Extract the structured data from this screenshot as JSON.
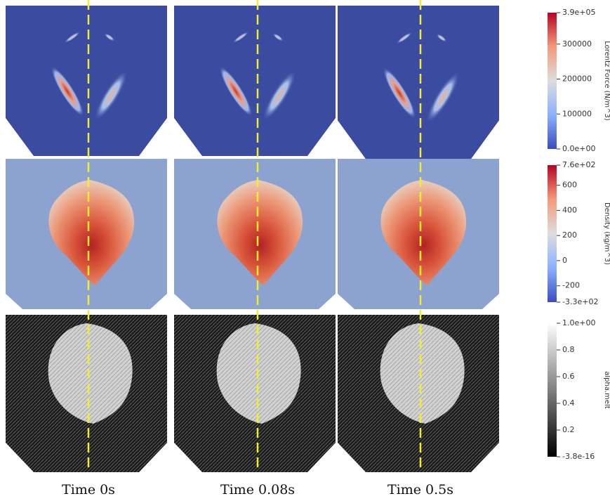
{
  "colorbars": [
    {
      "title": "Lorentz Force (N/m^3)",
      "ticks": [
        "3.9e+05",
        "300000",
        "200000",
        "100000",
        "0.0e+00"
      ]
    },
    {
      "title": "Density (kg/m^3)",
      "ticks": [
        "7.6e+02",
        "600",
        "400",
        "200",
        "0",
        "-200",
        "-3.3e+02"
      ]
    },
    {
      "title": "alpha.melt",
      "ticks": [
        "1.0e+00",
        "0.8",
        "0.6",
        "0.4",
        "0.2",
        "-3.8e-16"
      ]
    }
  ],
  "times": [
    "Time 0s",
    "Time 0.08s",
    "Time 0.5s"
  ]
}
